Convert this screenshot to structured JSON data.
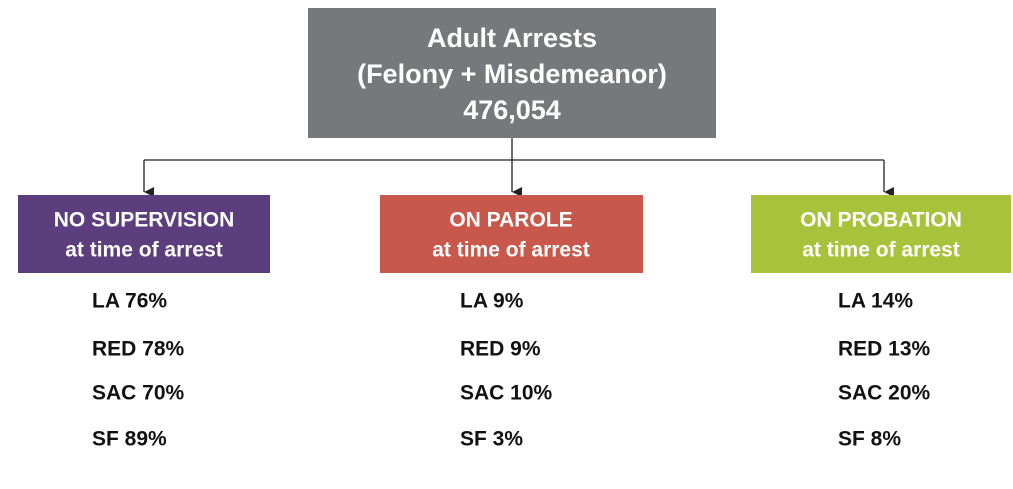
{
  "root": {
    "lines": [
      "Adult Arrests",
      "(Felony + Misdemeanor)",
      "476,054"
    ]
  },
  "branches": [
    {
      "title": "NO SUPERVISION",
      "subtitle": "at time of arrest",
      "items": [
        "LA 76%",
        "RED 78%",
        "SAC 70%",
        "SF 89%"
      ]
    },
    {
      "title": "ON PAROLE",
      "subtitle": "at time of arrest",
      "items": [
        "LA 9%",
        "RED 9%",
        "SAC 10%",
        "SF 3%"
      ]
    },
    {
      "title": "ON PROBATION",
      "subtitle": "at time of arrest",
      "items": [
        "LA 14%",
        "RED 13%",
        "SAC 20%",
        "SF 8%"
      ]
    }
  ]
}
